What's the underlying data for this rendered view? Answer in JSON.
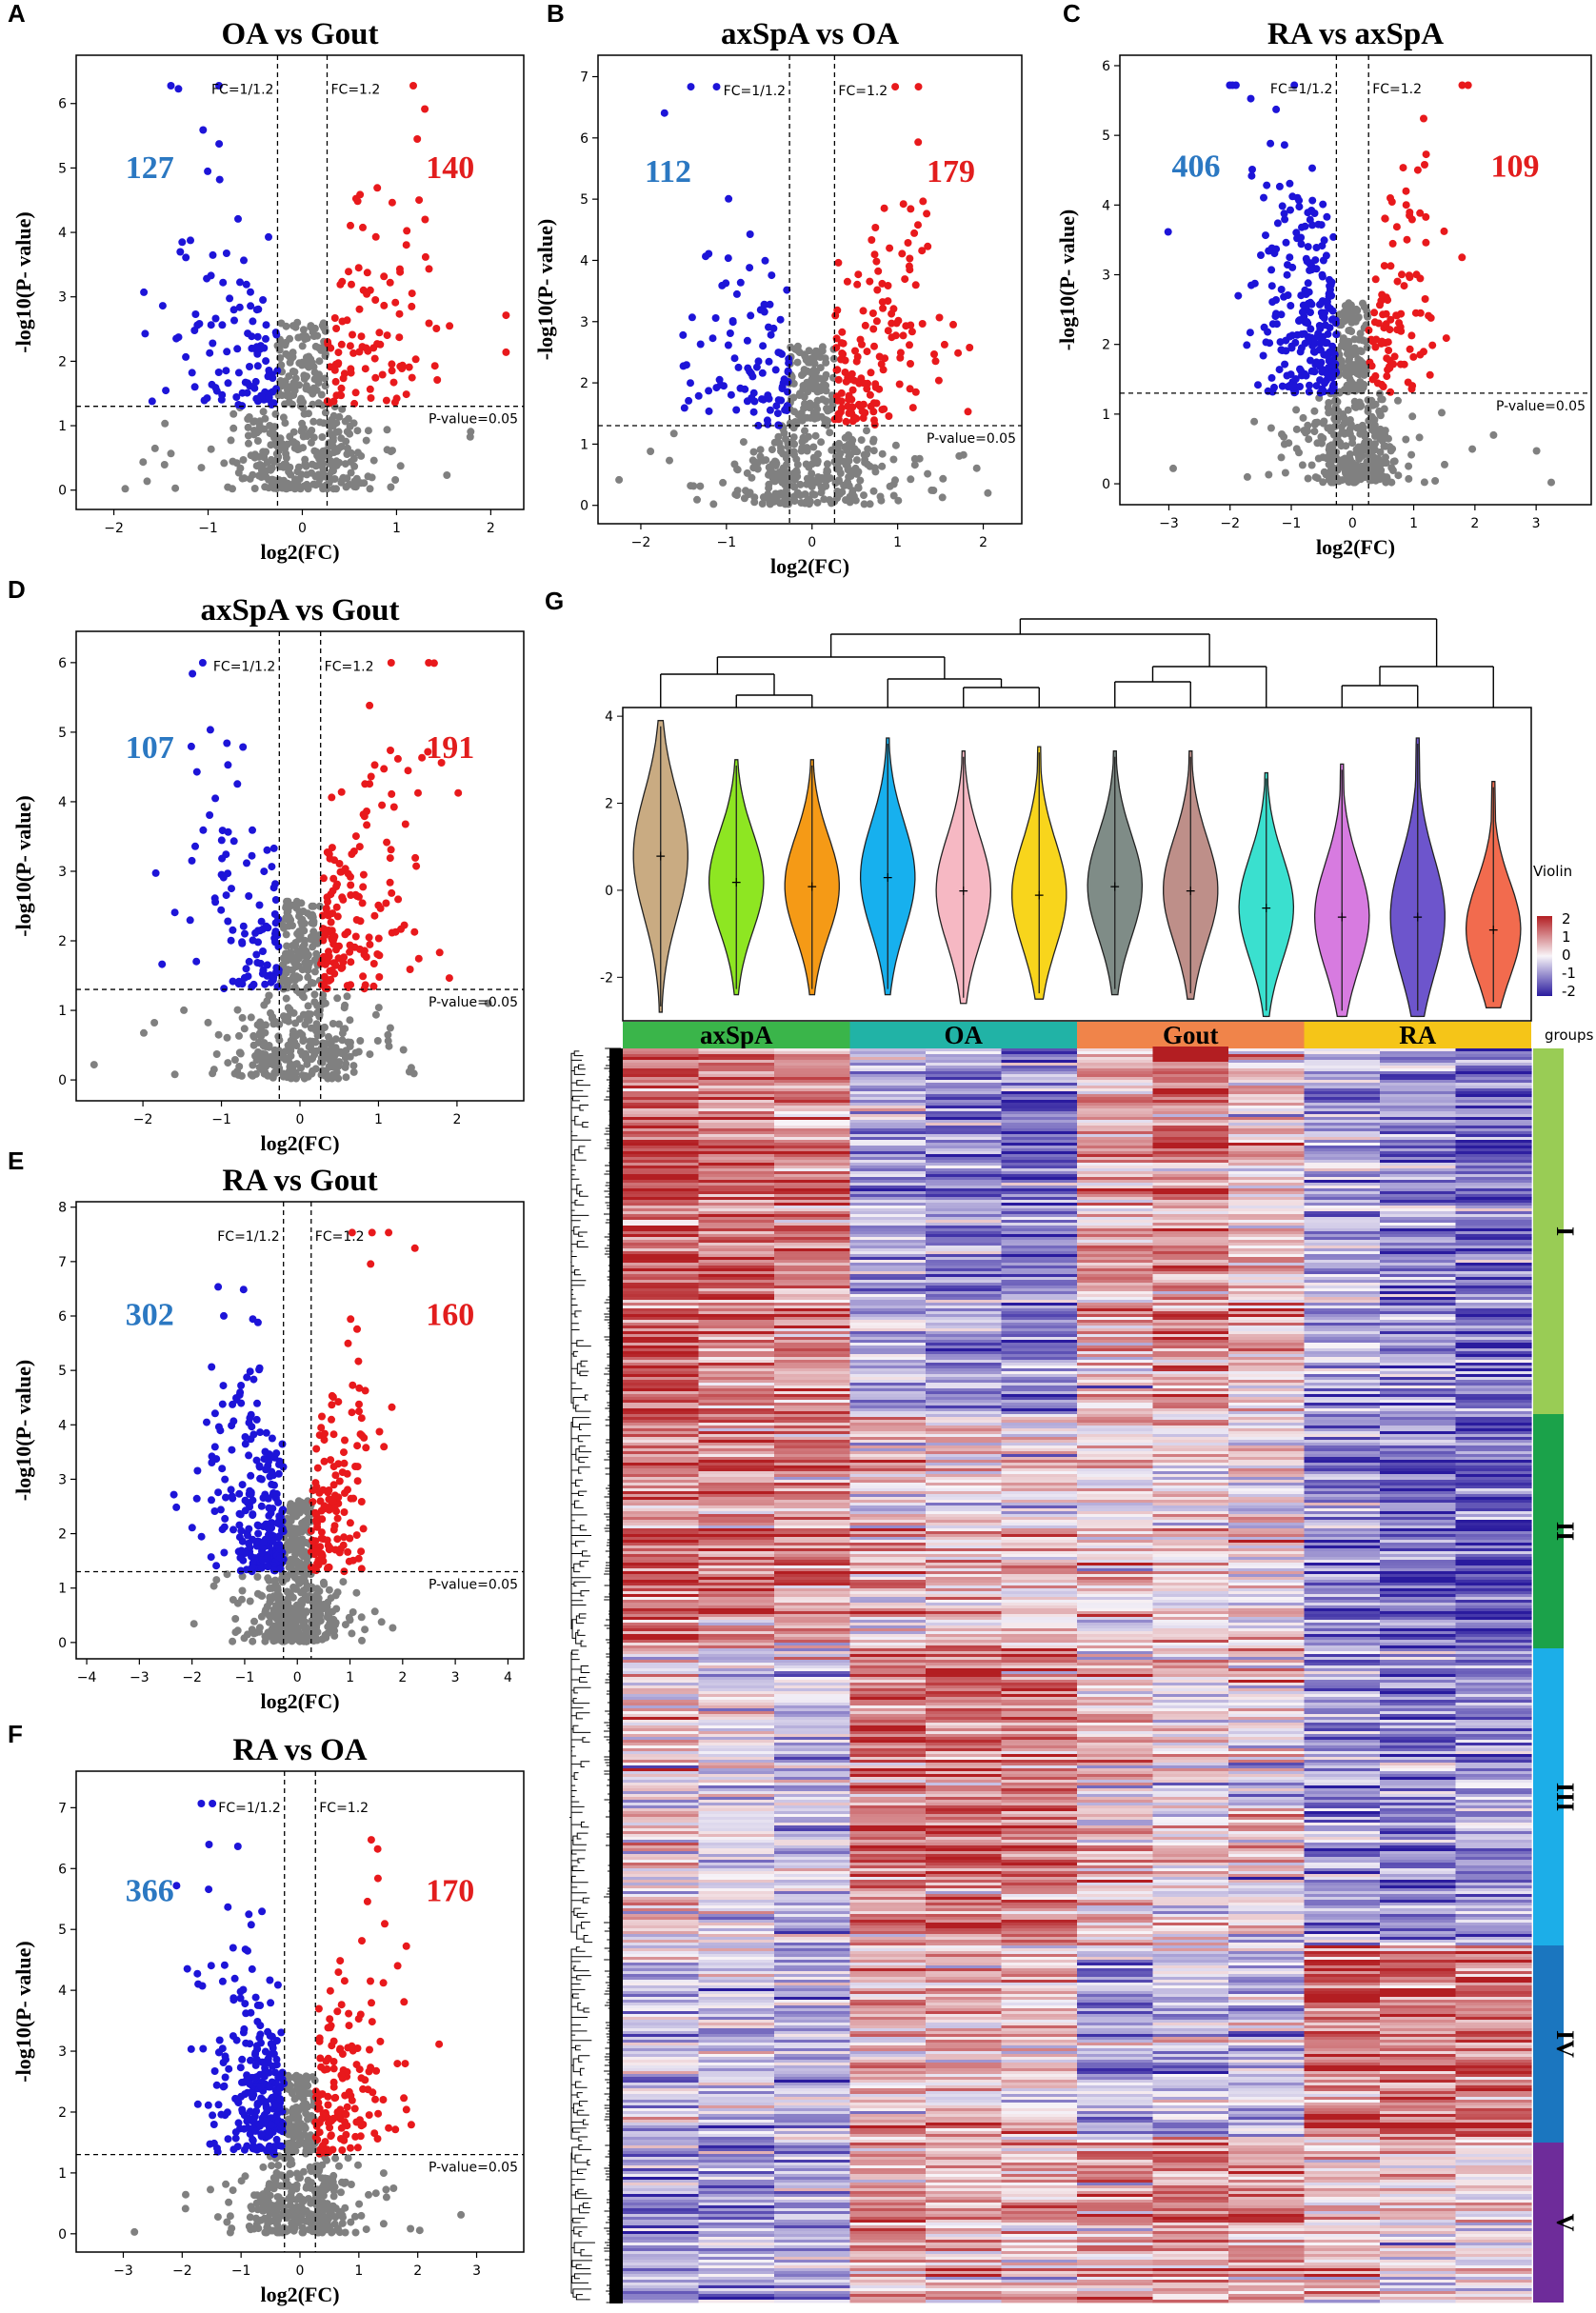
{
  "colors": {
    "up": "#e8191c",
    "down": "#1d14d8",
    "ns": "#808080",
    "count_down": "#2b78c2",
    "count_up": "#e21d1d"
  },
  "chart_data": [
    {
      "panel": "A",
      "type": "scatter",
      "title": "OA vs Gout",
      "xlabel": "log2(FC)",
      "ylabel": "-log10(P- value)",
      "xlim": [
        -2.4,
        2.35
      ],
      "ylim": [
        -0.3,
        6.75
      ],
      "xticks": [
        -2,
        -1,
        0,
        1,
        2
      ],
      "yticks": [
        0,
        1,
        2,
        3,
        4,
        5,
        6
      ],
      "fc_low_label": "FC=1/1.2",
      "fc_high_label": "FC=1.2",
      "p_label": "P-value=0.05",
      "fc_threshold": 0.263,
      "p_threshold": 1.301,
      "down_count": "127",
      "up_count": "140",
      "spread": 1.1,
      "n_down": 110,
      "n_up": 105,
      "n_ns": 420,
      "seed": 11
    },
    {
      "panel": "B",
      "type": "scatter",
      "title": "axSpA vs OA",
      "xlabel": "log2(FC)",
      "ylabel": "-log10(P- value)",
      "xlim": [
        -2.5,
        2.45
      ],
      "ylim": [
        -0.3,
        7.35
      ],
      "xticks": [
        -2,
        -1,
        0,
        1,
        2
      ],
      "yticks": [
        0,
        1,
        2,
        3,
        4,
        5,
        6,
        7
      ],
      "fc_low_label": "FC=1/1.2",
      "fc_high_label": "FC=1.2",
      "p_label": "P-value=0.05",
      "fc_threshold": 0.263,
      "p_threshold": 1.301,
      "down_count": "112",
      "up_count": "179",
      "spread": 1.15,
      "n_down": 100,
      "n_up": 150,
      "n_ns": 420,
      "seed": 22
    },
    {
      "panel": "C",
      "type": "scatter",
      "title": "RA vs axSpA",
      "xlabel": "log2(FC)",
      "ylabel": "-log10(P- value)",
      "xlim": [
        -3.8,
        3.9
      ],
      "ylim": [
        -0.3,
        6.15
      ],
      "xticks": [
        -3,
        -2,
        -1,
        0,
        1,
        2,
        3
      ],
      "yticks": [
        0,
        1,
        2,
        3,
        4,
        5,
        6
      ],
      "fc_low_label": "FC=1/1.2",
      "fc_high_label": "FC=1.2",
      "p_label": "P-value=0.05",
      "fc_threshold": 0.263,
      "p_threshold": 1.301,
      "down_count": "406",
      "up_count": "109",
      "spread": 1.2,
      "n_down": 260,
      "n_up": 100,
      "n_ns": 460,
      "seed": 33
    },
    {
      "panel": "D",
      "type": "scatter",
      "title": "axSpA vs Gout",
      "xlabel": "log2(FC)",
      "ylabel": "-log10(P- value)",
      "xlim": [
        -2.85,
        2.85
      ],
      "ylim": [
        -0.3,
        6.45
      ],
      "xticks": [
        -2,
        -1,
        0,
        1,
        2
      ],
      "yticks": [
        0,
        1,
        2,
        3,
        4,
        5,
        6
      ],
      "fc_low_label": "FC=1/1.2",
      "fc_high_label": "FC=1.2",
      "p_label": "P-value=0.05",
      "fc_threshold": 0.263,
      "p_threshold": 1.301,
      "down_count": "107",
      "up_count": "191",
      "spread": 1.1,
      "n_down": 100,
      "n_up": 160,
      "n_ns": 440,
      "seed": 44
    },
    {
      "panel": "E",
      "type": "scatter",
      "title": "RA vs Gout",
      "xlabel": "log2(FC)",
      "ylabel": "-log10(P- value)",
      "xlim": [
        -4.2,
        4.3
      ],
      "ylim": [
        -0.3,
        8.1
      ],
      "xticks": [
        -4,
        -3,
        -2,
        -1,
        0,
        1,
        2,
        3,
        4
      ],
      "yticks": [
        0,
        1,
        2,
        3,
        4,
        5,
        6,
        7,
        8
      ],
      "fc_low_label": "FC=1/1.2",
      "fc_high_label": "FC=1.2",
      "p_label": "P-value=0.05",
      "fc_threshold": 0.263,
      "p_threshold": 1.301,
      "down_count": "302",
      "up_count": "160",
      "spread": 1.2,
      "n_down": 240,
      "n_up": 140,
      "n_ns": 460,
      "seed": 55
    },
    {
      "panel": "F",
      "type": "scatter",
      "title": "RA vs OA",
      "xlabel": "log2(FC)",
      "ylabel": "-log10(P- value)",
      "xlim": [
        -3.8,
        3.8
      ],
      "ylim": [
        -0.3,
        7.6
      ],
      "xticks": [
        -3,
        -2,
        -1,
        0,
        1,
        2,
        3
      ],
      "yticks": [
        0,
        1,
        2,
        3,
        4,
        5,
        6,
        7
      ],
      "fc_low_label": "FC=1/1.2",
      "fc_high_label": "FC=1.2",
      "p_label": "P-value=0.05",
      "fc_threshold": 0.263,
      "p_threshold": 1.301,
      "down_count": "366",
      "up_count": "170",
      "spread": 1.2,
      "n_down": 260,
      "n_up": 150,
      "n_ns": 460,
      "seed": 66
    },
    {
      "panel": "G",
      "type": "heatmap",
      "groups": [
        {
          "name": "axSpA",
          "color": "#3ab54a"
        },
        {
          "name": "OA",
          "color": "#21b3a6"
        },
        {
          "name": "Gout",
          "color": "#f0844a"
        },
        {
          "name": "RA",
          "color": "#f5c518"
        }
      ],
      "violin": {
        "ylim": [
          -3,
          4.2
        ],
        "yticks": [
          -2,
          0,
          2,
          4
        ],
        "legend_title": "Violin",
        "samples": [
          {
            "color": "#c9ab82",
            "median": 0.8,
            "min": -2.8,
            "max": 3.9
          },
          {
            "color": "#8ee622",
            "median": 0.2,
            "min": -2.4,
            "max": 3.0
          },
          {
            "color": "#f59a16",
            "median": 0.1,
            "min": -2.4,
            "max": 3.0
          },
          {
            "color": "#17b0ee",
            "median": 0.3,
            "min": -2.4,
            "max": 3.5
          },
          {
            "color": "#f6b8c3",
            "median": 0.0,
            "min": -2.6,
            "max": 3.2
          },
          {
            "color": "#f8d51c",
            "median": -0.1,
            "min": -2.5,
            "max": 3.3
          },
          {
            "color": "#7f8c87",
            "median": 0.1,
            "min": -2.4,
            "max": 3.2
          },
          {
            "color": "#be8f89",
            "median": 0.0,
            "min": -2.5,
            "max": 3.2
          },
          {
            "color": "#3ae0cf",
            "median": -0.4,
            "min": -2.9,
            "max": 2.7
          },
          {
            "color": "#d77be0",
            "median": -0.6,
            "min": -2.9,
            "max": 2.9
          },
          {
            "color": "#6d55cc",
            "median": -0.6,
            "min": -2.9,
            "max": 3.5
          },
          {
            "color": "#f26b4e",
            "median": -0.9,
            "min": -2.7,
            "max": 2.5
          }
        ]
      },
      "color_scale": {
        "title": "",
        "ticks": [
          "2",
          "1",
          "0",
          "-1",
          "-2"
        ],
        "low": "#2a1b9e",
        "mid": "#f8f4f8",
        "high": "#b31e22"
      },
      "groups_label": "groups",
      "clusters": [
        {
          "name": "I",
          "color": "#99cc55",
          "fraction": 0.291,
          "profile": [
            1.3,
            1.1,
            1.0,
            -0.6,
            -0.9,
            -1.0,
            0.6,
            0.9,
            0.4,
            -0.6,
            -0.9,
            -1.2
          ]
        },
        {
          "name": "II",
          "color": "#1ba24a",
          "fraction": 0.186,
          "profile": [
            1.2,
            1.0,
            0.8,
            0.5,
            0.3,
            0.2,
            0.2,
            0.1,
            0.2,
            -1.0,
            -1.1,
            -1.4
          ]
        },
        {
          "name": "III",
          "color": "#1caee8",
          "fraction": 0.236,
          "profile": [
            0.3,
            -0.3,
            -0.4,
            1.3,
            1.2,
            1.2,
            0.6,
            0.2,
            0.1,
            -0.9,
            -1.0,
            -0.9
          ]
        },
        {
          "name": "IV",
          "color": "#1b76bf",
          "fraction": 0.158,
          "profile": [
            -0.4,
            -0.5,
            -0.5,
            0.5,
            0.6,
            0.4,
            -0.6,
            -0.4,
            -0.5,
            1.2,
            1.3,
            1.1
          ]
        },
        {
          "name": "V",
          "color": "#6e2c9a",
          "fraction": 0.129,
          "profile": [
            -0.9,
            -0.8,
            -0.8,
            0.9,
            0.7,
            0.5,
            0.8,
            1.0,
            0.9,
            0.4,
            0.3,
            0.2
          ]
        }
      ]
    }
  ]
}
